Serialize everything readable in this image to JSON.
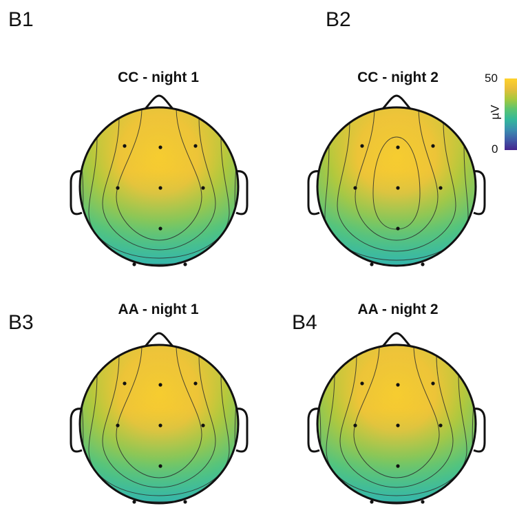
{
  "panels": [
    {
      "letter": "B1",
      "title": "CC - night 1",
      "contour": "wide"
    },
    {
      "letter": "B2",
      "title": "CC - night 2",
      "contour": "narrow"
    },
    {
      "letter": "B3",
      "title": "AA - night 1",
      "contour": "wide"
    },
    {
      "letter": "B4",
      "title": "AA - night 2",
      "contour": "wide"
    }
  ],
  "colorbar": {
    "max_label": "50",
    "min_label": "0",
    "unit_label": "µV",
    "colors": [
      "#FFD22C",
      "#E8BE3A",
      "#A8C83C",
      "#5CC470",
      "#33B89A",
      "#3A8FB0",
      "#3F5BA8",
      "#44248E"
    ]
  }
}
